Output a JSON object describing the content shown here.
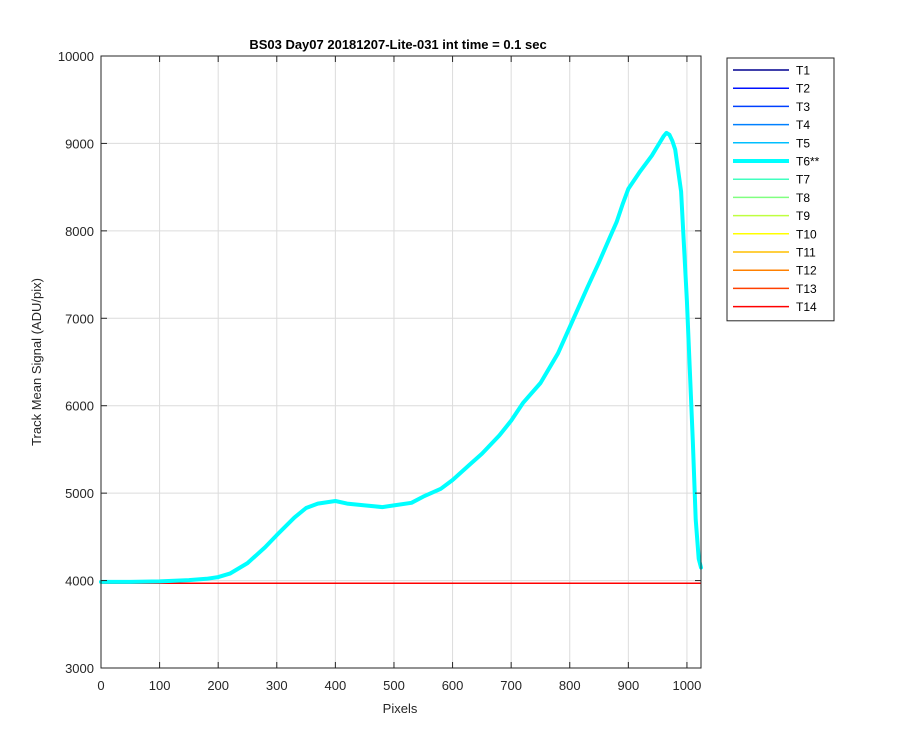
{
  "chart_data": {
    "type": "line",
    "title": "BS03 Day07 20181207-Lite-031 int time = 0.1 sec",
    "xlabel": "Pixels",
    "ylabel": "Track Mean Signal (ADU/pix)",
    "xlim": [
      0,
      1024
    ],
    "ylim": [
      3000,
      10000
    ],
    "xticks": [
      0,
      100,
      200,
      300,
      400,
      500,
      600,
      700,
      800,
      900,
      1000
    ],
    "yticks": [
      3000,
      4000,
      5000,
      6000,
      7000,
      8000,
      9000,
      10000
    ],
    "grid": true,
    "legend_position": "outside-top-right",
    "highlighted_series": "T6**",
    "highlighted_color": "#00ffff",
    "baseline_series_value": 3970,
    "series": [
      {
        "name": "T1",
        "color": "#00008f"
      },
      {
        "name": "T2",
        "color": "#0010ff"
      },
      {
        "name": "T3",
        "color": "#0040ff"
      },
      {
        "name": "T4",
        "color": "#0080ff"
      },
      {
        "name": "T5",
        "color": "#00bfff"
      },
      {
        "name": "T6**",
        "color": "#00ffff",
        "x": [
          0,
          50,
          100,
          150,
          180,
          200,
          220,
          250,
          280,
          300,
          330,
          350,
          370,
          390,
          400,
          420,
          450,
          480,
          500,
          530,
          550,
          580,
          600,
          630,
          650,
          680,
          700,
          720,
          750,
          780,
          800,
          830,
          850,
          870,
          880,
          890,
          900,
          920,
          940,
          950,
          960,
          965,
          970,
          975,
          980,
          990,
          1000,
          1010,
          1015,
          1020,
          1024
        ],
        "y": [
          3985,
          3985,
          3990,
          4005,
          4020,
          4040,
          4080,
          4200,
          4380,
          4520,
          4720,
          4830,
          4880,
          4900,
          4910,
          4880,
          4860,
          4840,
          4860,
          4890,
          4960,
          5050,
          5150,
          5330,
          5450,
          5660,
          5830,
          6030,
          6260,
          6600,
          6900,
          7350,
          7640,
          7950,
          8100,
          8300,
          8480,
          8680,
          8860,
          8970,
          9080,
          9120,
          9100,
          9030,
          8930,
          8450,
          7200,
          5600,
          4700,
          4250,
          4150
        ]
      },
      {
        "name": "T7",
        "color": "#40ffbf"
      },
      {
        "name": "T8",
        "color": "#80ff80"
      },
      {
        "name": "T9",
        "color": "#bfff40"
      },
      {
        "name": "T10",
        "color": "#ffff00"
      },
      {
        "name": "T11",
        "color": "#ffbf00"
      },
      {
        "name": "T12",
        "color": "#ff8000"
      },
      {
        "name": "T13",
        "color": "#ff4000"
      },
      {
        "name": "T14",
        "color": "#ff0000"
      }
    ]
  }
}
